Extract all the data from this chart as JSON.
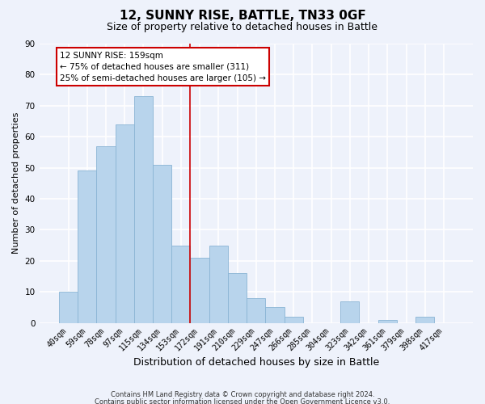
{
  "title": "12, SUNNY RISE, BATTLE, TN33 0GF",
  "subtitle": "Size of property relative to detached houses in Battle",
  "xlabel": "Distribution of detached houses by size in Battle",
  "ylabel": "Number of detached properties",
  "bar_labels": [
    "40sqm",
    "59sqm",
    "78sqm",
    "97sqm",
    "115sqm",
    "134sqm",
    "153sqm",
    "172sqm",
    "191sqm",
    "210sqm",
    "229sqm",
    "247sqm",
    "266sqm",
    "285sqm",
    "304sqm",
    "323sqm",
    "342sqm",
    "361sqm",
    "379sqm",
    "398sqm",
    "417sqm"
  ],
  "bar_values": [
    10,
    49,
    57,
    64,
    73,
    51,
    25,
    21,
    25,
    16,
    8,
    5,
    2,
    0,
    0,
    7,
    0,
    1,
    0,
    2,
    0
  ],
  "bar_color": "#b8d4ec",
  "bar_edge_color": "#8ab4d4",
  "ylim": [
    0,
    90
  ],
  "yticks": [
    0,
    10,
    20,
    30,
    40,
    50,
    60,
    70,
    80,
    90
  ],
  "vline_x_idx": 6.5,
  "vline_color": "#cc0000",
  "annotation_title": "12 SUNNY RISE: 159sqm",
  "annotation_line1": "← 75% of detached houses are smaller (311)",
  "annotation_line2": "25% of semi-detached houses are larger (105) →",
  "annotation_box_color": "#ffffff",
  "annotation_box_edge": "#cc0000",
  "footnote1": "Contains HM Land Registry data © Crown copyright and database right 2024.",
  "footnote2": "Contains public sector information licensed under the Open Government Licence v3.0.",
  "background_color": "#eef2fb",
  "grid_color": "#ffffff",
  "title_fontsize": 11,
  "subtitle_fontsize": 9,
  "tick_label_fontsize": 7,
  "ylabel_fontsize": 8,
  "xlabel_fontsize": 9,
  "footnote_fontsize": 6,
  "annotation_fontsize": 7.5
}
